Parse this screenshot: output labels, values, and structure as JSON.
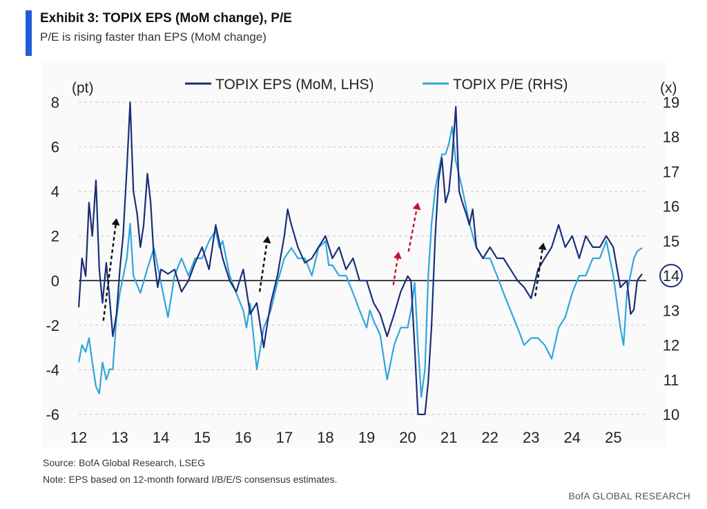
{
  "header": {
    "title": "Exhibit 3: TOPIX EPS (MoM change), P/E",
    "subtitle": "P/E is rising faster than EPS (MoM change)"
  },
  "footer": {
    "source": "Source: BofA Global Research, LSEG",
    "note": "Note: EPS based on 12-month forward I/B/E/S consensus estimates.",
    "brand": "BofA GLOBAL RESEARCH"
  },
  "colors": {
    "eps": "#1a2d78",
    "pe": "#2ea6dd",
    "arrow_black": "#111111",
    "arrow_red": "#c8102e",
    "accent": "#1f5fd6"
  },
  "chart_data": {
    "type": "line",
    "x_ticks": [
      "12",
      "13",
      "14",
      "15",
      "16",
      "17",
      "18",
      "19",
      "20",
      "21",
      "22",
      "23",
      "24",
      "25"
    ],
    "xlim": [
      2012.0,
      2025.8
    ],
    "y_left": {
      "unit_label": "(pt)",
      "ticks": [
        "8",
        "6",
        "4",
        "2",
        "0",
        "-2",
        "-4",
        "-6"
      ],
      "ylim": [
        -6,
        8
      ]
    },
    "y_right": {
      "unit_label": "(x)",
      "ticks": [
        "19",
        "18",
        "17",
        "16",
        "15",
        "14",
        "13",
        "12",
        "11",
        "10"
      ],
      "ylim": [
        10,
        19
      ],
      "highlighted_tick": "14"
    },
    "legend_position": "top",
    "grid": "dashed-horizontal",
    "series": [
      {
        "name": "TOPIX EPS (MoM, LHS)",
        "axis": "left",
        "x": [
          2012.0,
          2012.08,
          2012.17,
          2012.25,
          2012.33,
          2012.42,
          2012.5,
          2012.58,
          2012.67,
          2012.75,
          2012.83,
          2012.92,
          2013.0,
          2013.08,
          2013.17,
          2013.25,
          2013.33,
          2013.42,
          2013.5,
          2013.58,
          2013.67,
          2013.75,
          2013.83,
          2013.92,
          2014.0,
          2014.17,
          2014.33,
          2014.5,
          2014.67,
          2014.83,
          2015.0,
          2015.17,
          2015.33,
          2015.5,
          2015.67,
          2015.83,
          2016.0,
          2016.17,
          2016.33,
          2016.5,
          2016.58,
          2016.67,
          2016.83,
          2017.0,
          2017.08,
          2017.17,
          2017.33,
          2017.5,
          2017.67,
          2017.83,
          2018.0,
          2018.17,
          2018.33,
          2018.5,
          2018.67,
          2018.83,
          2019.0,
          2019.17,
          2019.33,
          2019.5,
          2019.67,
          2019.83,
          2020.0,
          2020.08,
          2020.17,
          2020.25,
          2020.33,
          2020.42,
          2020.5,
          2020.58,
          2020.67,
          2020.75,
          2020.83,
          2020.92,
          2021.0,
          2021.08,
          2021.17,
          2021.25,
          2021.33,
          2021.42,
          2021.5,
          2021.58,
          2021.67,
          2021.83,
          2022.0,
          2022.17,
          2022.33,
          2022.5,
          2022.67,
          2022.83,
          2023.0,
          2023.17,
          2023.33,
          2023.5,
          2023.67,
          2023.83,
          2024.0,
          2024.17,
          2024.33,
          2024.5,
          2024.67,
          2024.83,
          2025.0,
          2025.17,
          2025.33,
          2025.42,
          2025.5,
          2025.58,
          2025.7
        ],
        "values": [
          -1.2,
          1.0,
          0.2,
          3.5,
          2.0,
          4.5,
          0.5,
          -1.0,
          0.8,
          -0.8,
          -2.5,
          -1.5,
          0.5,
          2.0,
          5.0,
          8.0,
          4.0,
          3.0,
          1.5,
          2.5,
          4.8,
          3.5,
          1.0,
          -0.3,
          0.5,
          0.3,
          0.5,
          -0.5,
          0.0,
          0.8,
          1.5,
          0.5,
          2.5,
          1.0,
          0.0,
          -0.5,
          0.5,
          -1.5,
          -1.0,
          -3.0,
          -2.0,
          -1.0,
          0.2,
          2.0,
          3.2,
          2.5,
          1.5,
          0.8,
          1.0,
          1.5,
          2.0,
          1.0,
          1.5,
          0.5,
          1.0,
          0.0,
          0.0,
          -1.0,
          -1.5,
          -2.5,
          -1.5,
          -0.5,
          0.2,
          0.0,
          -3.0,
          -6.5,
          -6.0,
          -6.5,
          -4.5,
          -2.0,
          2.0,
          4.5,
          5.5,
          3.5,
          4.0,
          5.5,
          7.8,
          4.0,
          3.5,
          3.0,
          2.5,
          3.2,
          1.5,
          1.0,
          1.5,
          1.0,
          1.0,
          0.5,
          0.0,
          -0.3,
          -0.8,
          0.5,
          1.0,
          1.5,
          2.5,
          1.5,
          2.0,
          1.0,
          2.0,
          1.5,
          1.5,
          2.0,
          1.5,
          -0.3,
          0.0,
          -1.5,
          -1.3,
          0.0,
          0.3
        ]
      },
      {
        "name": "TOPIX P/E (RHS)",
        "axis": "right",
        "x": [
          2012.0,
          2012.08,
          2012.17,
          2012.25,
          2012.33,
          2012.42,
          2012.5,
          2012.58,
          2012.67,
          2012.75,
          2012.83,
          2012.92,
          2013.0,
          2013.17,
          2013.25,
          2013.33,
          2013.5,
          2013.67,
          2013.83,
          2014.0,
          2014.17,
          2014.33,
          2014.5,
          2014.67,
          2014.83,
          2015.0,
          2015.17,
          2015.33,
          2015.42,
          2015.5,
          2015.67,
          2015.83,
          2016.0,
          2016.08,
          2016.17,
          2016.33,
          2016.5,
          2016.67,
          2016.83,
          2017.0,
          2017.17,
          2017.33,
          2017.5,
          2017.67,
          2017.83,
          2018.0,
          2018.08,
          2018.17,
          2018.33,
          2018.5,
          2018.67,
          2018.83,
          2019.0,
          2019.08,
          2019.17,
          2019.33,
          2019.5,
          2019.67,
          2019.83,
          2020.0,
          2020.08,
          2020.17,
          2020.25,
          2020.33,
          2020.42,
          2020.5,
          2020.58,
          2020.67,
          2020.75,
          2020.83,
          2020.92,
          2021.0,
          2021.08,
          2021.17,
          2021.33,
          2021.5,
          2021.67,
          2021.83,
          2022.0,
          2022.17,
          2022.33,
          2022.5,
          2022.67,
          2022.83,
          2023.0,
          2023.17,
          2023.33,
          2023.5,
          2023.67,
          2023.83,
          2024.0,
          2024.17,
          2024.33,
          2024.5,
          2024.67,
          2024.83,
          2025.0,
          2025.17,
          2025.25,
          2025.33,
          2025.5,
          2025.58,
          2025.7
        ],
        "values": [
          11.5,
          12.0,
          11.8,
          12.2,
          11.5,
          10.8,
          10.6,
          11.5,
          11.0,
          11.3,
          11.3,
          12.8,
          13.5,
          14.5,
          15.5,
          14.0,
          13.5,
          14.2,
          14.8,
          13.8,
          12.8,
          14.0,
          14.5,
          14.0,
          14.5,
          14.5,
          15.0,
          15.3,
          14.8,
          15.0,
          14.0,
          13.5,
          13.0,
          12.5,
          13.2,
          11.3,
          12.5,
          13.0,
          13.8,
          14.5,
          14.8,
          14.5,
          14.5,
          14.0,
          14.8,
          15.0,
          14.3,
          14.3,
          14.0,
          14.0,
          13.5,
          13.0,
          12.5,
          13.0,
          12.7,
          12.3,
          11.0,
          12.0,
          12.5,
          12.5,
          13.0,
          13.8,
          12.0,
          10.5,
          11.3,
          14.0,
          15.5,
          16.5,
          17.0,
          17.5,
          17.5,
          17.8,
          18.3,
          17.3,
          16.5,
          15.5,
          14.8,
          14.5,
          14.5,
          14.0,
          13.5,
          13.0,
          12.5,
          12.0,
          12.2,
          12.2,
          12.0,
          11.6,
          12.5,
          12.8,
          13.5,
          14.0,
          14.0,
          14.5,
          14.5,
          15.0,
          14.0,
          12.5,
          12.0,
          13.5,
          14.5,
          14.7,
          14.8
        ]
      }
    ],
    "annotations": [
      {
        "kind": "arrow",
        "color": "black",
        "from": [
          2012.6,
          -1.8
        ],
        "to": [
          2012.92,
          2.8
        ]
      },
      {
        "kind": "arrow",
        "color": "black",
        "from": [
          2016.4,
          -0.5
        ],
        "to": [
          2016.6,
          2.0
        ]
      },
      {
        "kind": "arrow",
        "color": "red",
        "from": [
          2019.65,
          -0.2
        ],
        "to": [
          2019.78,
          1.3
        ]
      },
      {
        "kind": "arrow",
        "color": "red",
        "from": [
          2020.02,
          1.3
        ],
        "to": [
          2020.25,
          3.5
        ]
      },
      {
        "kind": "arrow",
        "color": "black",
        "from": [
          2023.1,
          -0.7
        ],
        "to": [
          2023.3,
          1.7
        ]
      }
    ]
  }
}
